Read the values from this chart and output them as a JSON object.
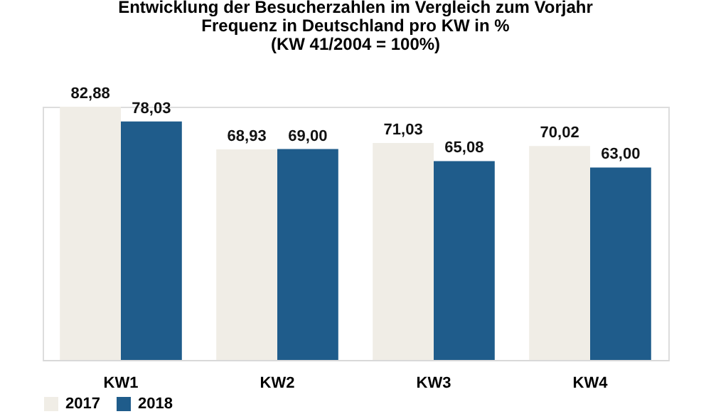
{
  "chart_data": {
    "type": "bar",
    "title": "Entwicklung der Besucherzahlen im Vergleich zum Vorjahr\nFrequenz in Deutschland pro KW in %\n(KW 41/2004 = 100%)",
    "categories": [
      "KW1",
      "KW2",
      "KW3",
      "KW4"
    ],
    "series": [
      {
        "name": "2017",
        "color": "#f0ede6",
        "values": [
          82.88,
          68.93,
          71.03,
          70.02
        ],
        "value_labels": [
          "82,88",
          "68,93",
          "71,03",
          "70,02"
        ]
      },
      {
        "name": "2018",
        "color": "#1f5c8b",
        "values": [
          78.03,
          69.0,
          65.08,
          63.0
        ],
        "value_labels": [
          "78,03",
          "69,00",
          "65,08",
          "63,00"
        ]
      }
    ],
    "legend": "bottom",
    "grid": false
  }
}
